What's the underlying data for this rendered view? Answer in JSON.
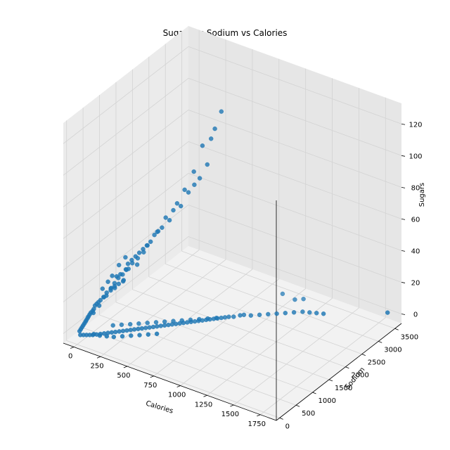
{
  "chart_data": {
    "type": "scatter",
    "title": "Sugars vs Sodium vs Calories",
    "xlabel": "Calories",
    "ylabel": "Sodium",
    "zlabel": "Sugars",
    "xlim": [
      -100,
      1900
    ],
    "ylim": [
      -100,
      3700
    ],
    "zlim": [
      -6,
      133
    ],
    "xticks": [
      "0",
      "250",
      "500",
      "750",
      "1000",
      "1250",
      "1500",
      "1750"
    ],
    "yticks": [
      "0",
      "500",
      "1000",
      "1500",
      "2000",
      "2500",
      "3000",
      "3500"
    ],
    "zticks": [
      "0",
      "20",
      "40",
      "60",
      "80",
      "100",
      "120"
    ],
    "grid": true,
    "color": "#1f77b4",
    "points": [
      [
        750,
        1950,
        128
      ],
      [
        700,
        1800,
        112
      ],
      [
        720,
        1850,
        118
      ],
      [
        650,
        1700,
        108
      ],
      [
        680,
        1750,
        96
      ],
      [
        600,
        1600,
        92
      ],
      [
        640,
        1650,
        88
      ],
      [
        560,
        1450,
        82
      ],
      [
        580,
        1500,
        80
      ],
      [
        620,
        1550,
        85
      ],
      [
        520,
        1350,
        74
      ],
      [
        500,
        1300,
        70
      ],
      [
        540,
        1400,
        72
      ],
      [
        460,
        1200,
        66
      ],
      [
        480,
        1250,
        64
      ],
      [
        440,
        1150,
        60
      ],
      [
        420,
        1100,
        58
      ],
      [
        400,
        1050,
        56
      ],
      [
        380,
        1000,
        52
      ],
      [
        360,
        950,
        50
      ],
      [
        340,
        900,
        48
      ],
      [
        320,
        850,
        46
      ],
      [
        300,
        800,
        44
      ],
      [
        280,
        750,
        42
      ],
      [
        260,
        700,
        40
      ],
      [
        300,
        850,
        38
      ],
      [
        260,
        650,
        37
      ],
      [
        240,
        700,
        36
      ],
      [
        220,
        600,
        34
      ],
      [
        200,
        550,
        33
      ],
      [
        250,
        600,
        31
      ],
      [
        230,
        650,
        29
      ],
      [
        210,
        580,
        28
      ],
      [
        190,
        520,
        27
      ],
      [
        170,
        480,
        26
      ],
      [
        180,
        560,
        25
      ],
      [
        160,
        500,
        24
      ],
      [
        140,
        440,
        23
      ],
      [
        150,
        400,
        22
      ],
      [
        130,
        380,
        21
      ],
      [
        120,
        420,
        20
      ],
      [
        110,
        350,
        19
      ],
      [
        100,
        320,
        18
      ],
      [
        90,
        300,
        17
      ],
      [
        80,
        280,
        16
      ],
      [
        95,
        360,
        15
      ],
      [
        75,
        260,
        14
      ],
      [
        70,
        240,
        13
      ],
      [
        60,
        220,
        12
      ],
      [
        55,
        200,
        11
      ],
      [
        65,
        280,
        11
      ],
      [
        50,
        180,
        10
      ],
      [
        45,
        170,
        9
      ],
      [
        40,
        150,
        8
      ],
      [
        35,
        140,
        7
      ],
      [
        30,
        120,
        6
      ],
      [
        25,
        100,
        5
      ],
      [
        20,
        80,
        4
      ],
      [
        15,
        60,
        3
      ],
      [
        10,
        40,
        2
      ],
      [
        380,
        1200,
        55
      ],
      [
        350,
        1000,
        49
      ],
      [
        330,
        950,
        45
      ],
      [
        290,
        900,
        41
      ],
      [
        270,
        800,
        39
      ],
      [
        240,
        780,
        35
      ],
      [
        210,
        700,
        32
      ],
      [
        185,
        650,
        30
      ],
      [
        165,
        600,
        27
      ],
      [
        145,
        550,
        24
      ],
      [
        200,
        620,
        39
      ],
      [
        230,
        720,
        43
      ],
      [
        180,
        480,
        34
      ],
      [
        150,
        450,
        30
      ],
      [
        120,
        380,
        26
      ],
      [
        20,
        30,
        0
      ],
      [
        40,
        60,
        0
      ],
      [
        60,
        90,
        0
      ],
      [
        80,
        120,
        0
      ],
      [
        100,
        150,
        0
      ],
      [
        120,
        200,
        0
      ],
      [
        140,
        250,
        0
      ],
      [
        160,
        300,
        0
      ],
      [
        180,
        350,
        0
      ],
      [
        200,
        400,
        0
      ],
      [
        220,
        450,
        0
      ],
      [
        240,
        500,
        0
      ],
      [
        260,
        550,
        0
      ],
      [
        280,
        600,
        0
      ],
      [
        300,
        650,
        0
      ],
      [
        320,
        700,
        0
      ],
      [
        340,
        750,
        0
      ],
      [
        360,
        800,
        0
      ],
      [
        380,
        850,
        0
      ],
      [
        400,
        900,
        0
      ],
      [
        420,
        950,
        0
      ],
      [
        440,
        1000,
        0
      ],
      [
        460,
        1050,
        0
      ],
      [
        480,
        1100,
        0
      ],
      [
        500,
        1150,
        0
      ],
      [
        520,
        1200,
        0
      ],
      [
        540,
        1250,
        0
      ],
      [
        560,
        1300,
        0
      ],
      [
        580,
        1350,
        0
      ],
      [
        600,
        1400,
        0
      ],
      [
        620,
        1450,
        0
      ],
      [
        640,
        1500,
        0
      ],
      [
        660,
        1550,
        0
      ],
      [
        680,
        1600,
        0
      ],
      [
        700,
        1650,
        0
      ],
      [
        720,
        1700,
        0
      ],
      [
        740,
        1750,
        0
      ],
      [
        760,
        1800,
        0
      ],
      [
        780,
        1850,
        0
      ],
      [
        800,
        1900,
        0
      ],
      [
        820,
        1950,
        0
      ],
      [
        850,
        2000,
        0
      ],
      [
        880,
        2100,
        0
      ],
      [
        900,
        2150,
        0
      ],
      [
        950,
        2200,
        0
      ],
      [
        1000,
        2300,
        0
      ],
      [
        1050,
        2400,
        0
      ],
      [
        1100,
        2500,
        0
      ],
      [
        1150,
        2600,
        0
      ],
      [
        1200,
        2700,
        0
      ],
      [
        150,
        600,
        0
      ],
      [
        200,
        700,
        0
      ],
      [
        250,
        800,
        0
      ],
      [
        300,
        900,
        0
      ],
      [
        350,
        1000,
        0
      ],
      [
        400,
        1100,
        0
      ],
      [
        450,
        1200,
        0
      ],
      [
        500,
        1300,
        0
      ],
      [
        550,
        1400,
        0
      ],
      [
        600,
        1500,
        0
      ],
      [
        650,
        1600,
        0
      ],
      [
        700,
        1700,
        0
      ],
      [
        750,
        1800,
        0
      ],
      [
        1250,
        2800,
        0
      ],
      [
        1300,
        2850,
        0
      ],
      [
        1350,
        2900,
        0
      ],
      [
        1400,
        2950,
        0
      ],
      [
        1100,
        3050,
        0
      ],
      [
        1150,
        3150,
        0
      ],
      [
        1800,
        3600,
        0
      ],
      [
        500,
        800,
        0
      ],
      [
        450,
        700,
        0
      ],
      [
        400,
        600,
        0
      ],
      [
        350,
        500,
        0
      ],
      [
        300,
        400,
        0
      ],
      [
        250,
        300,
        0
      ],
      [
        200,
        250,
        0
      ],
      [
        150,
        200,
        0
      ],
      [
        100,
        180,
        0
      ],
      [
        1000,
        3000,
        2
      ]
    ]
  }
}
